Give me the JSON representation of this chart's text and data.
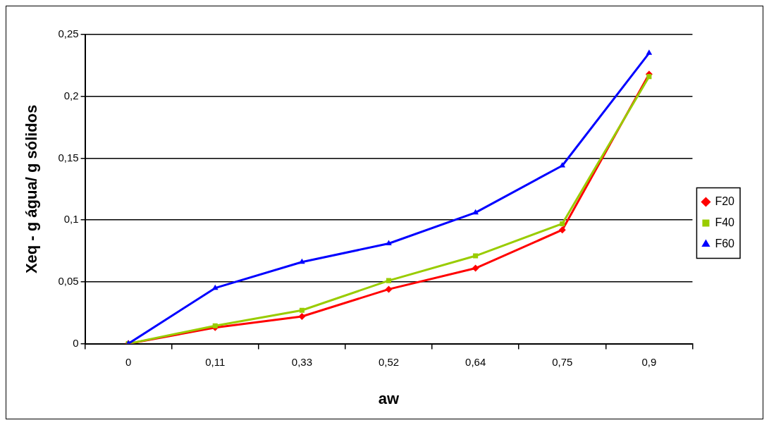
{
  "chart_data": {
    "type": "line",
    "xlabel": "aw",
    "ylabel": "Xeq - g água/ g sólidos",
    "categories": [
      "0",
      "0,11",
      "0,33",
      "0,52",
      "0,64",
      "0,75",
      "0,9"
    ],
    "series": [
      {
        "name": "F20",
        "color": "#ff0000",
        "marker": "diamond",
        "values": [
          0,
          0.013,
          0.022,
          0.044,
          0.061,
          0.092,
          0.218
        ]
      },
      {
        "name": "F40",
        "color": "#99cc00",
        "marker": "square",
        "values": [
          0,
          0.0145,
          0.027,
          0.051,
          0.071,
          0.097,
          0.216
        ]
      },
      {
        "name": "F60",
        "color": "#0000ff",
        "marker": "triangle",
        "values": [
          0,
          0.045,
          0.066,
          0.081,
          0.106,
          0.144,
          0.235
        ]
      }
    ],
    "ylim": [
      0,
      0.25
    ],
    "yticks": [
      {
        "value": 0,
        "label": "0"
      },
      {
        "value": 0.05,
        "label": "0,05"
      },
      {
        "value": 0.1,
        "label": "0,1"
      },
      {
        "value": 0.15,
        "label": "0,15"
      },
      {
        "value": 0.2,
        "label": "0,2"
      },
      {
        "value": 0.25,
        "label": "0,25"
      }
    ],
    "grid": "y",
    "legend": "right",
    "line_style": "solid"
  }
}
